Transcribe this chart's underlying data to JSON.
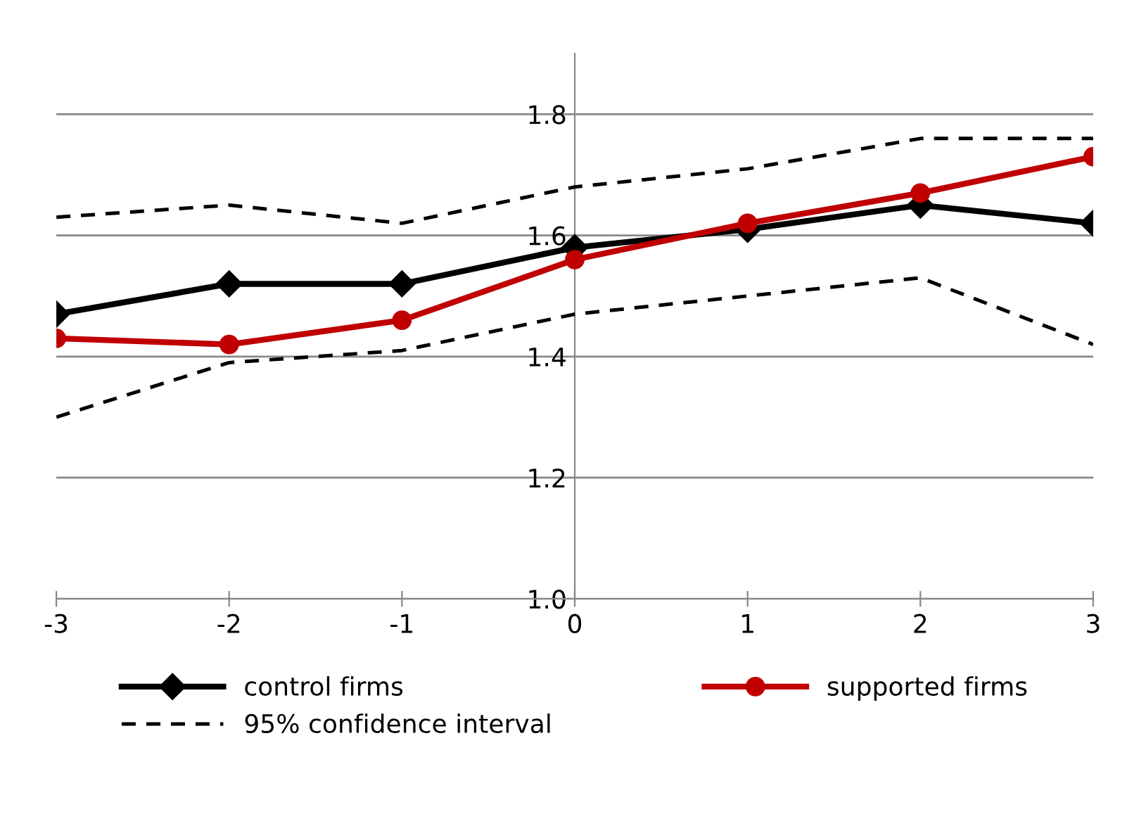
{
  "chart_data": {
    "type": "line",
    "x": [
      -3,
      -2,
      -1,
      0,
      1,
      2,
      3
    ],
    "xlim": [
      -3,
      3
    ],
    "xticks": [
      -3,
      -2,
      -1,
      0,
      1,
      2,
      3
    ],
    "ylim": [
      1.0,
      1.9
    ],
    "yticks": [
      {
        "value": 1.0,
        "label": "1.0"
      },
      {
        "value": 1.2,
        "label": "1.2"
      },
      {
        "value": 1.4,
        "label": "1.4"
      },
      {
        "value": 1.6,
        "label": "1.6"
      },
      {
        "value": 1.8,
        "label": "1.8"
      }
    ],
    "grid": "y",
    "legend": "bottom",
    "series": [
      {
        "name": "control firms",
        "color": "#000000",
        "marker": "diamond",
        "line_style": "solid",
        "values": [
          1.47,
          1.52,
          1.52,
          1.58,
          1.61,
          1.65,
          1.62
        ]
      },
      {
        "name": "supported firms",
        "color": "#c00000",
        "marker": "circle",
        "line_style": "solid",
        "values": [
          1.43,
          1.42,
          1.46,
          1.56,
          1.62,
          1.67,
          1.73
        ]
      },
      {
        "name": "95% confidence interval",
        "color": "#000000",
        "marker": "none",
        "line_style": "dashed",
        "values": [
          1.63,
          1.65,
          1.62,
          1.68,
          1.71,
          1.76,
          1.76
        ]
      },
      {
        "color": "#000000",
        "marker": "none",
        "line_style": "dashed",
        "values": [
          1.3,
          1.39,
          1.41,
          1.47,
          1.5,
          1.53,
          1.42
        ]
      }
    ]
  }
}
